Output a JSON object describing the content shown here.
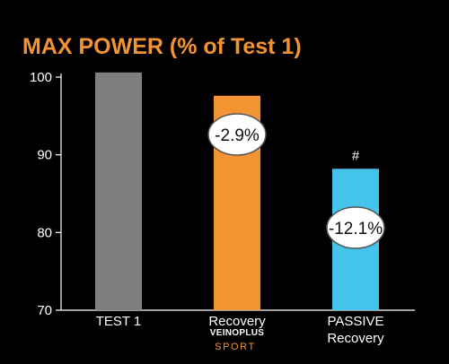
{
  "chart_data": {
    "type": "bar",
    "title": "MAX POWER (% of Test 1)",
    "categories": [
      "TEST 1",
      "Recovery",
      "PASSIVE\nRecovery"
    ],
    "values": [
      100.6,
      97.6,
      88.2
    ],
    "colors": [
      "#7d7f7e",
      "#f39433",
      "#44c4ea"
    ],
    "badges": [
      null,
      "-2.9%",
      "-12.1%"
    ],
    "markers": [
      null,
      null,
      "#"
    ],
    "yticks": [
      70,
      80,
      90,
      100
    ],
    "ylim": [
      70,
      100
    ],
    "grid": false,
    "brand": {
      "main": "VEINOPLUS",
      "sub": "SPORT",
      "sub_color": "#f39433"
    },
    "title_color": "#f39433"
  }
}
